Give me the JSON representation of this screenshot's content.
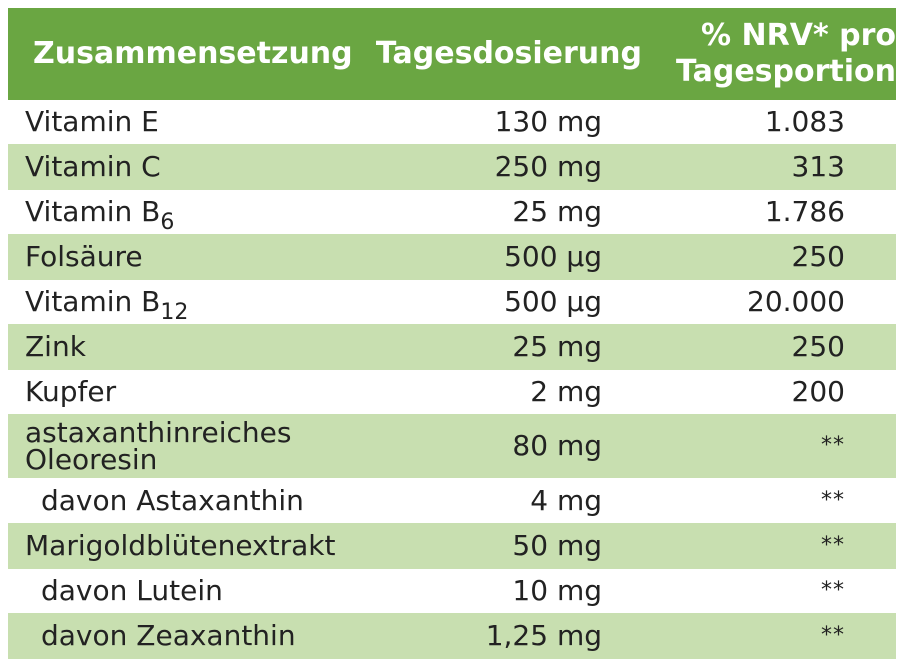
{
  "table": {
    "headers": {
      "col1": "Zusammensetzung",
      "col2": "Tagesdosierung",
      "col3_line1": "% NRV* pro",
      "col3_line2": "Tagesportion"
    },
    "rows": [
      {
        "name": "Vitamin E",
        "sub": "",
        "dose": "130 mg",
        "nrv": "1.083"
      },
      {
        "name": "Vitamin C",
        "sub": "",
        "dose": "250 mg",
        "nrv": "313"
      },
      {
        "name": "Vitamin B",
        "sub": "6",
        "dose": "25 mg",
        "nrv": "1.786"
      },
      {
        "name": "Folsäure",
        "sub": "",
        "dose": "500 µg",
        "nrv": "250"
      },
      {
        "name": "Vitamin B",
        "sub": "12",
        "dose": "500 µg",
        "nrv": "20.000"
      },
      {
        "name": "Zink",
        "sub": "",
        "dose": "25 mg",
        "nrv": "250"
      },
      {
        "name": "Kupfer",
        "sub": "",
        "dose": "2 mg",
        "nrv": "200"
      },
      {
        "name_line1": "astaxanthinreiches",
        "name_line2": "Oleoresin",
        "dose": "80 mg",
        "nrv": "**"
      },
      {
        "name": "davon Astaxanthin",
        "sub": "",
        "dose": "4 mg",
        "nrv": "**"
      },
      {
        "name": "Marigoldblütenextrakt",
        "sub": "",
        "dose": "50 mg",
        "nrv": "**"
      },
      {
        "name": "davon Lutein",
        "sub": "",
        "dose": "10 mg",
        "nrv": "**"
      },
      {
        "name": "davon Zeaxanthin",
        "sub": "",
        "dose": "1,25 mg",
        "nrv": "**"
      }
    ]
  },
  "colors": {
    "header_green": "#6aa642",
    "stripe_green": "#c8dfb0",
    "text": "#222222"
  }
}
